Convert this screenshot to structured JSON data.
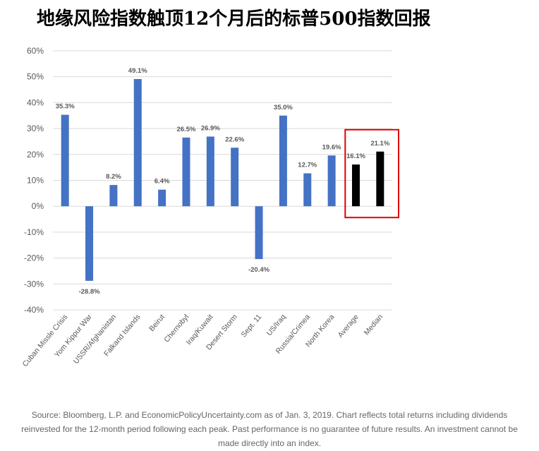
{
  "title": "地缘风险指数触顶12个月后的标普500指数回报",
  "source": "Source: Bloomberg, L.P. and EconomicPolicyUncertainty.com as of Jan. 3, 2019. Chart reflects total returns including dividends reinvested for the 12-month period following each peak. Past performance is no guarantee of future results. An investment cannot be made directly into an index.",
  "chart_data": {
    "type": "bar",
    "title": "",
    "xlabel": "",
    "ylabel": "",
    "categories": [
      "Cuban Missle Crisis",
      "Yom Kippur War",
      "USSR/Afghanistan",
      "Falkand Islands",
      "Beirut",
      "Chernobyl",
      "Iraq/Kuwait",
      "Desert Storm",
      "Sept. 11",
      "US/Iraq",
      "Russia/Crimea",
      "North Korea",
      "Average",
      "Median"
    ],
    "values": [
      35.3,
      -28.8,
      8.2,
      49.1,
      6.4,
      26.5,
      26.9,
      22.6,
      -20.4,
      35.0,
      12.7,
      19.6,
      16.1,
      21.1
    ],
    "data_labels": [
      "35.3%",
      "-28.8%",
      "8.2%",
      "49.1%",
      "6.4%",
      "26.5%",
      "26.9%",
      "22.6%",
      "-20.4%",
      "35.0%",
      "12.7%",
      "19.6%",
      "16.1%",
      "21.1%"
    ],
    "yticks": [
      60,
      50,
      40,
      30,
      20,
      10,
      0,
      -10,
      -20,
      -30,
      -40
    ],
    "ytick_labels": [
      "60%",
      "50%",
      "40%",
      "30%",
      "20%",
      "10%",
      "0%",
      "-10%",
      "-20%",
      "-30%",
      "-40%"
    ],
    "ylim": [
      -40,
      60
    ],
    "grid": true,
    "legend": "none",
    "colors": {
      "bar": "#4472c4",
      "highlight_bar": "#000000",
      "highlight_box": "#e00000",
      "grid": "#d9d9d9",
      "axis_text": "#595959"
    },
    "highlighted_categories": [
      "Average",
      "Median"
    ]
  }
}
